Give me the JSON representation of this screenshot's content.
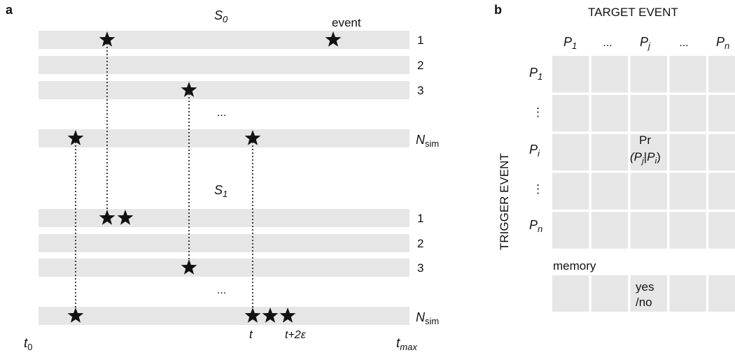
{
  "panel_a": {
    "label": "a",
    "sections": [
      {
        "name": "S",
        "sub": "0"
      },
      {
        "name": "S",
        "sub": "1"
      }
    ],
    "event_label": "event",
    "row_labels": [
      "1",
      "2",
      "3",
      "...",
      "N_sim"
    ],
    "ellipsis": "...",
    "nsim": {
      "main": "N",
      "sub": "sim"
    },
    "axis": {
      "t0": {
        "main": "t",
        "sub": "0"
      },
      "t": "t",
      "t2e": "t+2ε",
      "tmax": {
        "main": "t",
        "sub": "max"
      }
    }
  },
  "panel_b": {
    "label": "b",
    "title": "TARGET EVENT",
    "side_title": "TRIGGER EVENT",
    "columns": [
      {
        "main": "P",
        "sub": "1"
      },
      {
        "main": "...",
        "sub": ""
      },
      {
        "main": "P",
        "sub": "j"
      },
      {
        "main": "...",
        "sub": ""
      },
      {
        "main": "P",
        "sub": "n"
      }
    ],
    "rows": [
      {
        "main": "P",
        "sub": "1"
      },
      {
        "main": "⋮",
        "sub": ""
      },
      {
        "main": "P",
        "sub": "i"
      },
      {
        "main": "⋮",
        "sub": ""
      },
      {
        "main": "P",
        "sub": "n"
      }
    ],
    "prob_cell": {
      "line1": "Pr",
      "line2": "(P",
      "sub1": "j",
      "bar": "|",
      "p2": "P",
      "sub2": "i",
      "close": ")"
    },
    "memory_label": "memory",
    "memory_cell": {
      "line1": "yes",
      "line2": "/no"
    }
  }
}
